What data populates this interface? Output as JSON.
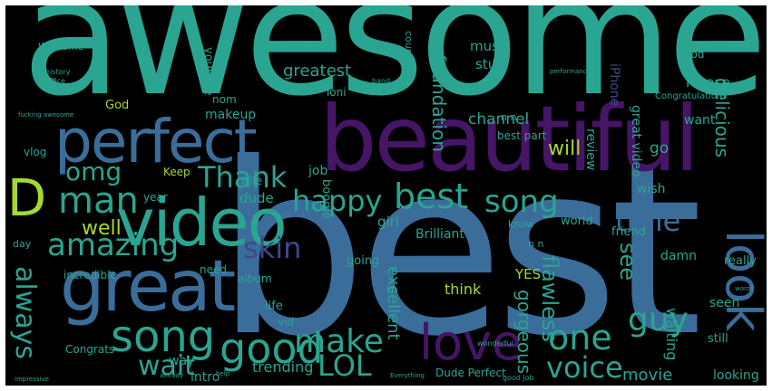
{
  "colors": {
    "background": "#000000",
    "frame": "#ffffff",
    "teal": "#2aa591",
    "blue": "#3a6d9a",
    "purple": "#4a0f5e",
    "dark_purple": "#461566",
    "green": "#5ec962",
    "yellow_green": "#a6d831",
    "light_teal": "#35b779",
    "steel": "#31688e",
    "slate": "#3e4989"
  },
  "words": {
    "awesome": "awesome",
    "best": "best",
    "beautiful": "beautiful",
    "perfect": "perfect",
    "video": "video",
    "great": "great",
    "D": "D",
    "man": "man",
    "omg": "omg",
    "Thank": "Thank",
    "happy": "happy",
    "best2": "best",
    "song": "song",
    "time": "time",
    "amazing": "amazing",
    "skin": "skin",
    "look": "look",
    "song2": "song",
    "good": "good",
    "make": "make",
    "love": "love",
    "one": "one",
    "guy": "guy",
    "wait": "wait",
    "LOL": "LOL",
    "voice": "voice",
    "always": "always",
    "see": "see",
    "flawless": "flawless",
    "well": "well",
    "greatest": "greatest",
    "foundation": "foundation",
    "music": "music",
    "stuff": "stuff",
    "channel": "channel",
    "delicious": "delicious",
    "will": "will",
    "movie": "movie",
    "trending": "trending",
    "looking": "looking",
    "intro": "intro",
    "way": "way",
    "think": "think",
    "excellent": "excellent",
    "gorgeous": "gorgeous",
    "Please": "Please",
    "great_video": "great video",
    "want": "want",
    "review": "review",
    "go": "go",
    "wish": "wish",
    "dude": "dude",
    "Keep": "Keep",
    "job": "job",
    "girl": "girl",
    "Brilliant": "Brilliant",
    "world": "world",
    "friend": "friend",
    "know": "know",
    "YES": "YES",
    "damn": "damn",
    "really": "really",
    "still": "still",
    "seen": "seen",
    "going": "going",
    "incredible": "incredible",
    "need": "need",
    "album": "album",
    "life": "life",
    "vid": "vid",
    "Congrats": "Congrats",
    "Dude_Perfect": "Dude Perfect",
    "makeup": "makeup",
    "God": "God",
    "Welcome": "Welcome",
    "youtube": "youtube",
    "vlog": "vlog",
    "year": "year",
    "Nile": "Nile",
    "boogie": "boogie",
    "best_part": "best part",
    "waiting": "waiting",
    "Toni": "Toni",
    "iPhone": "iPhone",
    "nom": "nom",
    "country": "country",
    "food": "food",
    "Congratulations": "Congratulations",
    "day": "day",
    "u": "u",
    "nn": "n n",
    "nn2": "n n",
    "history": "history",
    "office": "office",
    "fucking_awesome": "fucking awesome",
    "band": "band",
    "performance": "performance",
    "wonderful": "wonderful",
    "Everything": "Everything",
    "good_job": "good job",
    "impressive": "impressive",
    "already": "already",
    "help": "help",
    "words": "words"
  }
}
